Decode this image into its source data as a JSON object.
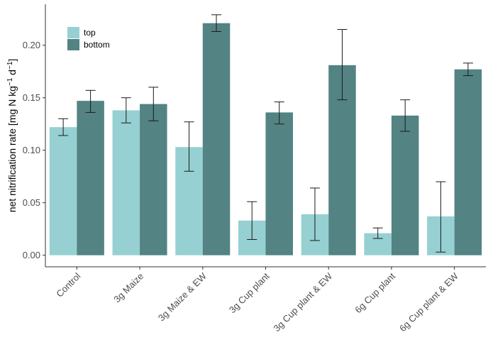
{
  "chart_data": {
    "type": "bar",
    "title": "",
    "xlabel": "",
    "ylabel_main": "net nitrification rate [mg N kg",
    "ylabel_sup1": "−1",
    "ylabel_mid": " d",
    "ylabel_sup2": "−1",
    "ylabel_end": "]",
    "ylim": [
      -0.011,
      0.239
    ],
    "yticks": [
      "0.00",
      "0.05",
      "0.10",
      "0.15",
      "0.20"
    ],
    "ytick_values": [
      0,
      0.05,
      0.1,
      0.15,
      0.2
    ],
    "categories": [
      "Control",
      "3g Maize",
      "3g Maize & EW",
      "3g Cup plant",
      "3g Cup plant & EW",
      "6g Cup plant",
      "6g Cup plant & EW"
    ],
    "series": [
      {
        "name": "top",
        "color": "#96d0d2",
        "values": [
          0.122,
          0.138,
          0.103,
          0.033,
          0.039,
          0.021,
          0.037
        ],
        "err_low": [
          0.114,
          0.126,
          0.08,
          0.015,
          0.014,
          0.016,
          0.003
        ],
        "err_high": [
          0.13,
          0.15,
          0.127,
          0.051,
          0.064,
          0.026,
          0.07
        ]
      },
      {
        "name": "bottom",
        "color": "#538383",
        "values": [
          0.147,
          0.144,
          0.221,
          0.136,
          0.181,
          0.133,
          0.177
        ],
        "err_low": [
          0.136,
          0.128,
          0.213,
          0.125,
          0.148,
          0.118,
          0.171
        ],
        "err_high": [
          0.157,
          0.16,
          0.229,
          0.146,
          0.215,
          0.148,
          0.183
        ]
      }
    ],
    "legend_position": "top-left",
    "grid": false,
    "bar_gap": "none within group",
    "error_bar_color": "#1a1a1a"
  }
}
